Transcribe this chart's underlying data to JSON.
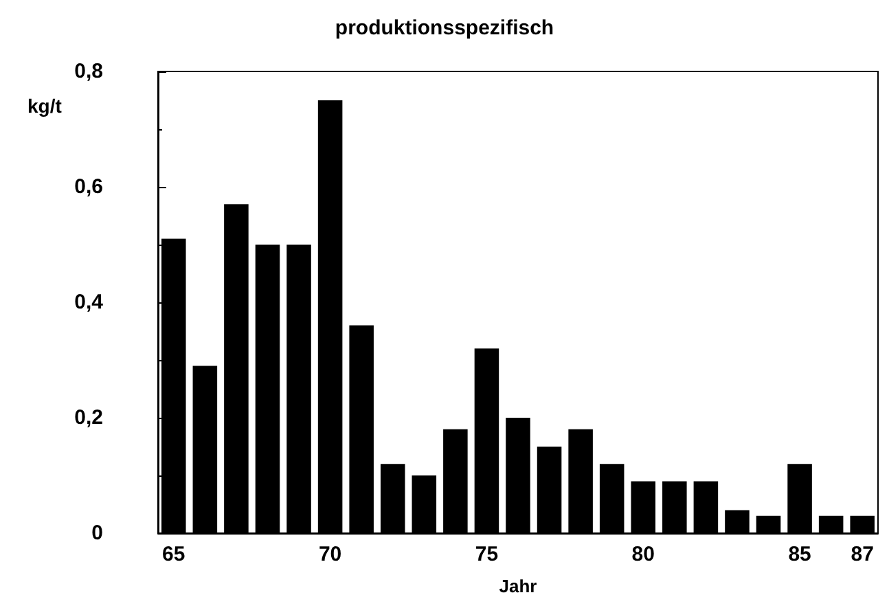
{
  "chart_data": {
    "type": "bar",
    "title": "produktionsspezifisch",
    "xlabel": "Jahr",
    "ylabel": "kg/t",
    "categories": [
      "65",
      null,
      null,
      null,
      null,
      "70",
      null,
      null,
      null,
      null,
      "75",
      null,
      null,
      null,
      null,
      "80",
      null,
      null,
      null,
      null,
      "85",
      null,
      "87"
    ],
    "values": [
      0.51,
      0.29,
      0.57,
      0.5,
      0.5,
      0.75,
      0.36,
      0.12,
      0.1,
      0.18,
      0.32,
      0.2,
      0.15,
      0.18,
      0.12,
      0.09,
      0.09,
      0.09,
      0.04,
      0.03,
      0.12,
      0.03,
      0.03
    ],
    "color": "#000000",
    "ylim": [
      0,
      0.8
    ],
    "yticks": [
      0,
      {
        "value": 0.2,
        "label": "0,2"
      },
      {
        "value": 0.4,
        "label": "0,4"
      },
      {
        "value": 0.6,
        "label": "0,6"
      },
      {
        "value": 0.8,
        "label": "0,8"
      }
    ],
    "grid": false
  }
}
